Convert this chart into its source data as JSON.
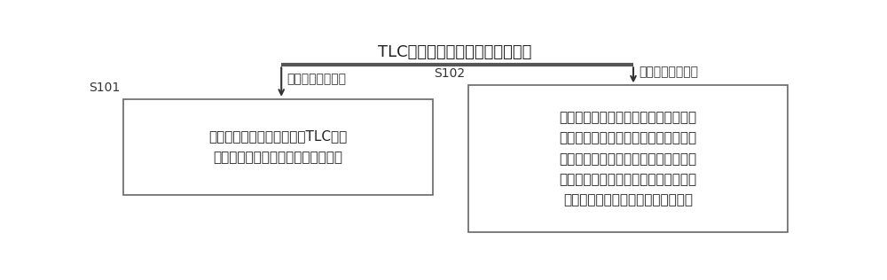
{
  "background_color": "#ffffff",
  "title": "TLC芯片固态硬盘的剩余存储空间",
  "title_fontsize": 13,
  "label_s101": "S101",
  "label_s102": "S102",
  "box1_text": "将数据流以第一方式存储到TLC芯片\n固态硬盘中，以形成快速操作数据区",
  "box2_text": "以快速操作数据区所在的硬盘区域为第\n一区域，将第一区域中的热数据以第二\n方式移动存储到剩余存储空间的第二区\n域中，将第一区域中的冷数据以第三方\n式移动存储到剩余空间的第三区域中",
  "label_left": "大于第一预设数值",
  "label_right": "小于第一预设数值",
  "font_size_box": 11,
  "font_size_label": 10,
  "font_size_step": 10,
  "arrow_color": "#333333",
  "box_edge_color": "#666666",
  "box_face_color": "#ffffff",
  "line_color": "#555555"
}
